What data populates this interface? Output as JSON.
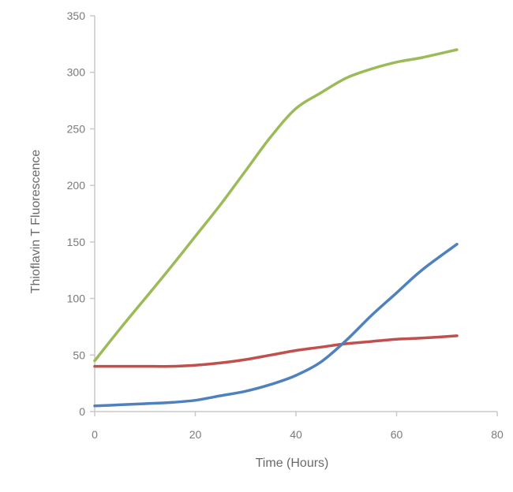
{
  "chart_data": {
    "type": "line",
    "title": "",
    "xlabel": "Time (Hours)",
    "ylabel": "Thioflavin T Fluorescence",
    "xlim": [
      0,
      80
    ],
    "ylim": [
      0,
      350
    ],
    "xticks": [
      "0",
      "20",
      "40",
      "60",
      "80"
    ],
    "yticks": [
      "0",
      "50",
      "100",
      "150",
      "200",
      "250",
      "300",
      "350"
    ],
    "grid": false,
    "legend": "none",
    "series": [
      {
        "color": "#9bbb59",
        "x": [
          0,
          5,
          10,
          15,
          20,
          25,
          30,
          35,
          40,
          45,
          50,
          55,
          60,
          65,
          72
        ],
        "y": [
          45,
          73,
          100,
          127,
          155,
          183,
          213,
          243,
          268,
          282,
          295,
          303,
          309,
          313,
          320
        ]
      },
      {
        "color": "#c0504d",
        "x": [
          0,
          5,
          10,
          15,
          20,
          25,
          30,
          35,
          40,
          45,
          50,
          55,
          60,
          65,
          72
        ],
        "y": [
          40,
          40,
          40,
          40,
          41,
          43,
          46,
          50,
          54,
          57,
          60,
          62,
          64,
          65,
          67
        ]
      },
      {
        "color": "#4f81bd",
        "x": [
          0,
          5,
          10,
          15,
          20,
          25,
          30,
          35,
          40,
          45,
          50,
          55,
          60,
          65,
          72
        ],
        "y": [
          5,
          6,
          7,
          8,
          10,
          14,
          18,
          24,
          32,
          44,
          63,
          85,
          105,
          125,
          148
        ]
      }
    ]
  }
}
